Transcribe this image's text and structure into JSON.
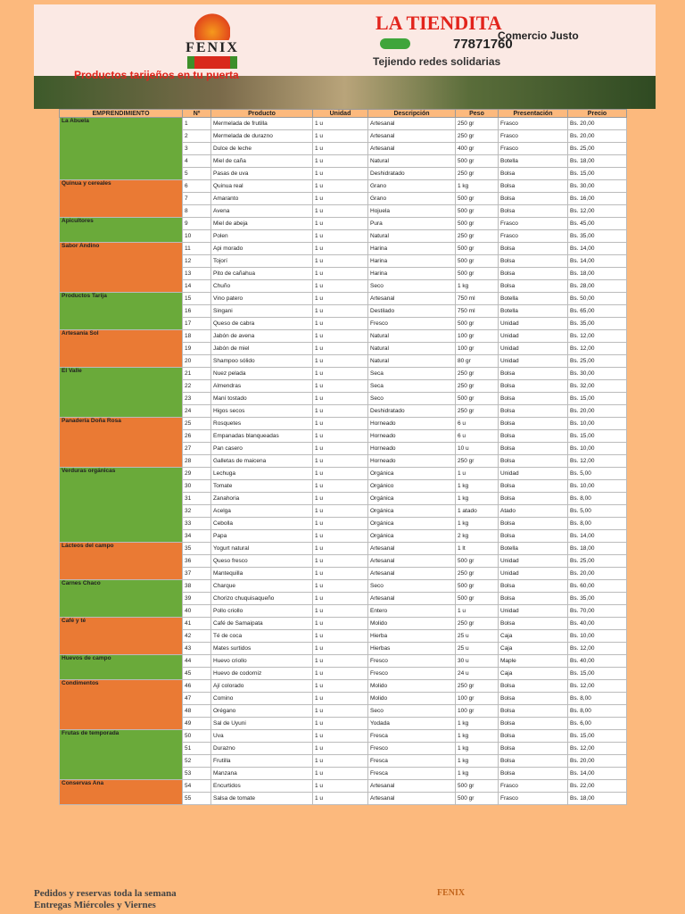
{
  "header": {
    "title": "LA TIENDITA",
    "brand": "FENIX",
    "subtitle": "Comercio Justo",
    "phone": "77871760",
    "slogan": "Tejiendo redes solidarias",
    "tagline": "Productos tarijeños en tu puerta"
  },
  "table": {
    "columns": [
      "EMPRENDIMIENTO",
      "Nº",
      "Producto",
      "Unidad",
      "Descripción",
      "Peso",
      "Presentación",
      "Precio"
    ],
    "groups": [
      {
        "name": "La Abuela",
        "fill": "#6aaa3a",
        "rows": [
          [
            "1",
            "Mermelada de frutilla",
            "1 u",
            "Artesanal",
            "250 gr",
            "Frasco",
            "Bs. 20,00"
          ],
          [
            "2",
            "Mermelada de durazno",
            "1 u",
            "Artesanal",
            "250 gr",
            "Frasco",
            "Bs. 20,00"
          ],
          [
            "3",
            "Dulce de leche",
            "1 u",
            "Artesanal",
            "400 gr",
            "Frasco",
            "Bs. 25,00"
          ],
          [
            "4",
            "Miel de caña",
            "1 u",
            "Natural",
            "500 gr",
            "Botella",
            "Bs. 18,00"
          ],
          [
            "5",
            "Pasas de uva",
            "1 u",
            "Deshidratado",
            "250 gr",
            "Bolsa",
            "Bs. 15,00"
          ]
        ]
      },
      {
        "name": "Quinua y cereales",
        "fill": "#ea7a34",
        "rows": [
          [
            "6",
            "Quinua real",
            "1 u",
            "Grano",
            "1 kg",
            "Bolsa",
            "Bs. 30,00"
          ],
          [
            "7",
            "Amaranto",
            "1 u",
            "Grano",
            "500 gr",
            "Bolsa",
            "Bs. 16,00"
          ],
          [
            "8",
            "Avena",
            "1 u",
            "Hojuela",
            "500 gr",
            "Bolsa",
            "Bs. 12,00"
          ]
        ]
      },
      {
        "name": "Apicultores",
        "fill": "#6aaa3a",
        "rows": [
          [
            "9",
            "Miel de abeja",
            "1 u",
            "Pura",
            "500 gr",
            "Frasco",
            "Bs. 45,00"
          ],
          [
            "10",
            "Polen",
            "1 u",
            "Natural",
            "250 gr",
            "Frasco",
            "Bs. 35,00"
          ]
        ]
      },
      {
        "name": "Sabor Andino",
        "fill": "#ea7a34",
        "rows": [
          [
            "11",
            "Api morado",
            "1 u",
            "Harina",
            "500 gr",
            "Bolsa",
            "Bs. 14,00"
          ],
          [
            "12",
            "Tojorí",
            "1 u",
            "Harina",
            "500 gr",
            "Bolsa",
            "Bs. 14,00"
          ],
          [
            "13",
            "Pito de cañahua",
            "1 u",
            "Harina",
            "500 gr",
            "Bolsa",
            "Bs. 18,00"
          ],
          [
            "14",
            "Chuño",
            "1 u",
            "Seco",
            "1 kg",
            "Bolsa",
            "Bs. 28,00"
          ]
        ]
      },
      {
        "name": "Productos Tarija",
        "fill": "#6aaa3a",
        "rows": [
          [
            "15",
            "Vino patero",
            "1 u",
            "Artesanal",
            "750 ml",
            "Botella",
            "Bs. 50,00"
          ],
          [
            "16",
            "Singani",
            "1 u",
            "Destilado",
            "750 ml",
            "Botella",
            "Bs. 65,00"
          ],
          [
            "17",
            "Queso de cabra",
            "1 u",
            "Fresco",
            "500 gr",
            "Unidad",
            "Bs. 35,00"
          ]
        ]
      },
      {
        "name": "Artesanía Sol",
        "fill": "#ea7a34",
        "rows": [
          [
            "18",
            "Jabón de avena",
            "1 u",
            "Natural",
            "100 gr",
            "Unidad",
            "Bs. 12,00"
          ],
          [
            "19",
            "Jabón de miel",
            "1 u",
            "Natural",
            "100 gr",
            "Unidad",
            "Bs. 12,00"
          ],
          [
            "20",
            "Shampoo sólido",
            "1 u",
            "Natural",
            "80 gr",
            "Unidad",
            "Bs. 25,00"
          ]
        ]
      },
      {
        "name": "El Valle",
        "fill": "#6aaa3a",
        "rows": [
          [
            "21",
            "Nuez pelada",
            "1 u",
            "Seca",
            "250 gr",
            "Bolsa",
            "Bs. 30,00"
          ],
          [
            "22",
            "Almendras",
            "1 u",
            "Seca",
            "250 gr",
            "Bolsa",
            "Bs. 32,00"
          ],
          [
            "23",
            "Maní tostado",
            "1 u",
            "Seco",
            "500 gr",
            "Bolsa",
            "Bs. 15,00"
          ],
          [
            "24",
            "Higos secos",
            "1 u",
            "Deshidratado",
            "250 gr",
            "Bolsa",
            "Bs. 20,00"
          ]
        ]
      },
      {
        "name": "Panadería Doña Rosa",
        "fill": "#ea7a34",
        "rows": [
          [
            "25",
            "Rosquetes",
            "1 u",
            "Horneado",
            "6 u",
            "Bolsa",
            "Bs. 10,00"
          ],
          [
            "26",
            "Empanadas blanqueadas",
            "1 u",
            "Horneado",
            "6 u",
            "Bolsa",
            "Bs. 15,00"
          ],
          [
            "27",
            "Pan casero",
            "1 u",
            "Horneado",
            "10 u",
            "Bolsa",
            "Bs. 10,00"
          ],
          [
            "28",
            "Galletas de maicena",
            "1 u",
            "Horneado",
            "250 gr",
            "Bolsa",
            "Bs. 12,00"
          ]
        ]
      },
      {
        "name": "Verduras orgánicas",
        "fill": "#6aaa3a",
        "rows": [
          [
            "29",
            "Lechuga",
            "1 u",
            "Orgánica",
            "1 u",
            "Unidad",
            "Bs. 5,00"
          ],
          [
            "30",
            "Tomate",
            "1 u",
            "Orgánico",
            "1 kg",
            "Bolsa",
            "Bs. 10,00"
          ],
          [
            "31",
            "Zanahoria",
            "1 u",
            "Orgánica",
            "1 kg",
            "Bolsa",
            "Bs. 8,00"
          ],
          [
            "32",
            "Acelga",
            "1 u",
            "Orgánica",
            "1 atado",
            "Atado",
            "Bs. 5,00"
          ],
          [
            "33",
            "Cebolla",
            "1 u",
            "Orgánica",
            "1 kg",
            "Bolsa",
            "Bs. 8,00"
          ],
          [
            "34",
            "Papa",
            "1 u",
            "Orgánica",
            "2 kg",
            "Bolsa",
            "Bs. 14,00"
          ]
        ]
      },
      {
        "name": "Lácteos del campo",
        "fill": "#ea7a34",
        "rows": [
          [
            "35",
            "Yogurt natural",
            "1 u",
            "Artesanal",
            "1 lt",
            "Botella",
            "Bs. 18,00"
          ],
          [
            "36",
            "Queso fresco",
            "1 u",
            "Artesanal",
            "500 gr",
            "Unidad",
            "Bs. 25,00"
          ],
          [
            "37",
            "Mantequilla",
            "1 u",
            "Artesanal",
            "250 gr",
            "Unidad",
            "Bs. 20,00"
          ]
        ]
      },
      {
        "name": "Carnes Chaco",
        "fill": "#6aaa3a",
        "rows": [
          [
            "38",
            "Charque",
            "1 u",
            "Seco",
            "500 gr",
            "Bolsa",
            "Bs. 60,00"
          ],
          [
            "39",
            "Chorizo chuquisaqueño",
            "1 u",
            "Artesanal",
            "500 gr",
            "Bolsa",
            "Bs. 35,00"
          ],
          [
            "40",
            "Pollo criollo",
            "1 u",
            "Entero",
            "1 u",
            "Unidad",
            "Bs. 70,00"
          ]
        ]
      },
      {
        "name": "Café y té",
        "fill": "#ea7a34",
        "rows": [
          [
            "41",
            "Café de Samaipata",
            "1 u",
            "Molido",
            "250 gr",
            "Bolsa",
            "Bs. 40,00"
          ],
          [
            "42",
            "Té de coca",
            "1 u",
            "Hierba",
            "25 u",
            "Caja",
            "Bs. 10,00"
          ],
          [
            "43",
            "Mates surtidos",
            "1 u",
            "Hierbas",
            "25 u",
            "Caja",
            "Bs. 12,00"
          ]
        ]
      },
      {
        "name": "Huevos de campo",
        "fill": "#6aaa3a",
        "rows": [
          [
            "44",
            "Huevo criollo",
            "1 u",
            "Fresco",
            "30 u",
            "Maple",
            "Bs. 40,00"
          ],
          [
            "45",
            "Huevo de codorniz",
            "1 u",
            "Fresco",
            "24 u",
            "Caja",
            "Bs. 15,00"
          ]
        ]
      },
      {
        "name": "Condimentos",
        "fill": "#ea7a34",
        "rows": [
          [
            "46",
            "Ají colorado",
            "1 u",
            "Molido",
            "250 gr",
            "Bolsa",
            "Bs. 12,00"
          ],
          [
            "47",
            "Comino",
            "1 u",
            "Molido",
            "100 gr",
            "Bolsa",
            "Bs. 8,00"
          ],
          [
            "48",
            "Orégano",
            "1 u",
            "Seco",
            "100 gr",
            "Bolsa",
            "Bs. 8,00"
          ],
          [
            "49",
            "Sal de Uyuni",
            "1 u",
            "Yodada",
            "1 kg",
            "Bolsa",
            "Bs. 6,00"
          ]
        ]
      },
      {
        "name": "Frutas de temporada",
        "fill": "#6aaa3a",
        "rows": [
          [
            "50",
            "Uva",
            "1 u",
            "Fresca",
            "1 kg",
            "Bolsa",
            "Bs. 15,00"
          ],
          [
            "51",
            "Durazno",
            "1 u",
            "Fresco",
            "1 kg",
            "Bolsa",
            "Bs. 12,00"
          ],
          [
            "52",
            "Frutilla",
            "1 u",
            "Fresca",
            "1 kg",
            "Bolsa",
            "Bs. 20,00"
          ],
          [
            "53",
            "Manzana",
            "1 u",
            "Fresca",
            "1 kg",
            "Bolsa",
            "Bs. 14,00"
          ]
        ]
      },
      {
        "name": "Conservas Ana",
        "fill": "#ea7a34",
        "rows": [
          [
            "54",
            "Encurtidos",
            "1 u",
            "Artesanal",
            "500 gr",
            "Frasco",
            "Bs. 22,00"
          ],
          [
            "55",
            "Salsa de tomate",
            "1 u",
            "Artesanal",
            "500 gr",
            "Frasco",
            "Bs. 18,00"
          ]
        ]
      }
    ]
  },
  "footer": {
    "line1": "Pedidos y reservas toda la semana",
    "line2": "Entregas Miércoles y Viernes",
    "logo": "FENIX"
  }
}
